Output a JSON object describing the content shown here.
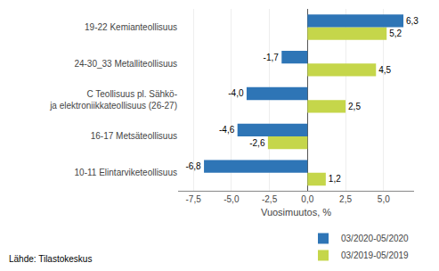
{
  "chart_data": {
    "type": "bar",
    "orientation": "horizontal",
    "categories": [
      "10-11 Elintarviketeollisuus",
      "16-17 Metsäteollisuus",
      "C Teollisuus pl. Sähkö-\nja elektroniikkateollisuus (26-27)",
      "24-30_33 Metalliteollisuus",
      "19-22 Kemianteollisuus"
    ],
    "series": [
      {
        "name": "03/2020-05/2020",
        "color": "#2E75B6",
        "values": [
          -6.8,
          -4.6,
          -4.0,
          -1.7,
          6.3
        ],
        "value_labels": [
          "-6,8",
          "-4,6",
          "-4,0",
          "-1,7",
          "6,3"
        ]
      },
      {
        "name": "03/2019-05/2019",
        "color": "#C5D64A",
        "values": [
          1.2,
          -2.6,
          2.5,
          4.5,
          5.2
        ],
        "value_labels": [
          "1,2",
          "-2,6",
          "2,5",
          "4,5",
          "5,2"
        ]
      }
    ],
    "xlabel": "Vuosimuutos, %",
    "xlim": [
      -8.5,
      7.0
    ],
    "xticks": [
      {
        "value": -7.5,
        "label": "-7,5"
      },
      {
        "value": -5.0,
        "label": "-5,0"
      },
      {
        "value": -2.5,
        "label": "-2,5"
      },
      {
        "value": 0.0,
        "label": "0,0"
      },
      {
        "value": 2.5,
        "label": "2,5"
      },
      {
        "value": 5.0,
        "label": "5,0"
      }
    ],
    "grid": true,
    "legend": "lower right",
    "data_labels": true,
    "annotations": [
      "Lähde: Tilastokeskus"
    ]
  }
}
